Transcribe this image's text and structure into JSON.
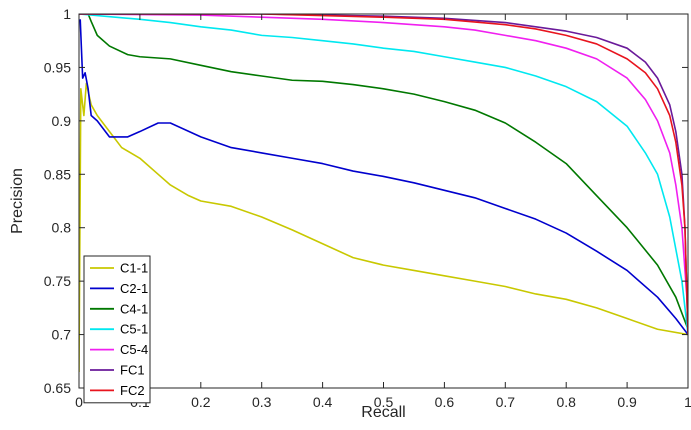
{
  "chart_data": {
    "type": "line",
    "title": "",
    "xlabel": "Recall",
    "ylabel": "Precision",
    "xlim": [
      0,
      1
    ],
    "ylim": [
      0.65,
      1
    ],
    "x_ticks": [
      0,
      0.1,
      0.2,
      0.3,
      0.4,
      0.5,
      0.6,
      0.7,
      0.8,
      0.9,
      1
    ],
    "x_tick_labels": [
      "0",
      "0.1",
      "0.2",
      "0.3",
      "0.4",
      "0.5",
      "0.6",
      "0.7",
      "0.8",
      "0.9",
      "1"
    ],
    "y_ticks": [
      0.65,
      0.7,
      0.75,
      0.8,
      0.85,
      0.9,
      0.95,
      1
    ],
    "y_tick_labels": [
      "0.65",
      "0.7",
      "0.75",
      "0.8",
      "0.85",
      "0.9",
      "0.95",
      "1"
    ],
    "grid": false,
    "legend_position": "bottom-left",
    "series": [
      {
        "name": "C1-1",
        "color": "#c8c800",
        "points": [
          [
            0,
            0.665
          ],
          [
            0.003,
            0.93
          ],
          [
            0.008,
            0.905
          ],
          [
            0.012,
            0.935
          ],
          [
            0.02,
            0.915
          ],
          [
            0.03,
            0.905
          ],
          [
            0.05,
            0.89
          ],
          [
            0.07,
            0.875
          ],
          [
            0.1,
            0.865
          ],
          [
            0.13,
            0.85
          ],
          [
            0.15,
            0.84
          ],
          [
            0.18,
            0.83
          ],
          [
            0.2,
            0.825
          ],
          [
            0.25,
            0.82
          ],
          [
            0.3,
            0.81
          ],
          [
            0.35,
            0.798
          ],
          [
            0.4,
            0.785
          ],
          [
            0.45,
            0.772
          ],
          [
            0.5,
            0.765
          ],
          [
            0.55,
            0.76
          ],
          [
            0.6,
            0.755
          ],
          [
            0.65,
            0.75
          ],
          [
            0.7,
            0.745
          ],
          [
            0.75,
            0.738
          ],
          [
            0.8,
            0.733
          ],
          [
            0.85,
            0.725
          ],
          [
            0.9,
            0.715
          ],
          [
            0.95,
            0.705
          ],
          [
            1.0,
            0.7
          ]
        ]
      },
      {
        "name": "C2-1",
        "color": "#0000cd",
        "points": [
          [
            0.002,
            0.995
          ],
          [
            0.006,
            0.94
          ],
          [
            0.01,
            0.945
          ],
          [
            0.015,
            0.93
          ],
          [
            0.02,
            0.905
          ],
          [
            0.03,
            0.9
          ],
          [
            0.05,
            0.885
          ],
          [
            0.08,
            0.885
          ],
          [
            0.1,
            0.89
          ],
          [
            0.13,
            0.898
          ],
          [
            0.15,
            0.898
          ],
          [
            0.2,
            0.885
          ],
          [
            0.25,
            0.875
          ],
          [
            0.3,
            0.87
          ],
          [
            0.35,
            0.865
          ],
          [
            0.4,
            0.86
          ],
          [
            0.45,
            0.853
          ],
          [
            0.5,
            0.848
          ],
          [
            0.55,
            0.842
          ],
          [
            0.6,
            0.835
          ],
          [
            0.65,
            0.828
          ],
          [
            0.7,
            0.818
          ],
          [
            0.75,
            0.808
          ],
          [
            0.8,
            0.795
          ],
          [
            0.85,
            0.778
          ],
          [
            0.9,
            0.76
          ],
          [
            0.95,
            0.735
          ],
          [
            0.98,
            0.715
          ],
          [
            1.0,
            0.7
          ]
        ]
      },
      {
        "name": "C4-1",
        "color": "#007800",
        "points": [
          [
            0.015,
            1.0
          ],
          [
            0.02,
            0.993
          ],
          [
            0.03,
            0.98
          ],
          [
            0.05,
            0.97
          ],
          [
            0.08,
            0.962
          ],
          [
            0.1,
            0.96
          ],
          [
            0.15,
            0.958
          ],
          [
            0.2,
            0.952
          ],
          [
            0.25,
            0.946
          ],
          [
            0.3,
            0.942
          ],
          [
            0.35,
            0.938
          ],
          [
            0.4,
            0.937
          ],
          [
            0.45,
            0.934
          ],
          [
            0.5,
            0.93
          ],
          [
            0.55,
            0.925
          ],
          [
            0.6,
            0.918
          ],
          [
            0.65,
            0.91
          ],
          [
            0.7,
            0.898
          ],
          [
            0.75,
            0.88
          ],
          [
            0.8,
            0.86
          ],
          [
            0.85,
            0.83
          ],
          [
            0.9,
            0.8
          ],
          [
            0.95,
            0.765
          ],
          [
            0.98,
            0.735
          ],
          [
            1.0,
            0.705
          ]
        ]
      },
      {
        "name": "C5-1",
        "color": "#00e8f0",
        "points": [
          [
            0.0,
            1.0
          ],
          [
            0.1,
            0.995
          ],
          [
            0.15,
            0.992
          ],
          [
            0.2,
            0.988
          ],
          [
            0.25,
            0.985
          ],
          [
            0.3,
            0.98
          ],
          [
            0.35,
            0.978
          ],
          [
            0.4,
            0.975
          ],
          [
            0.45,
            0.972
          ],
          [
            0.5,
            0.968
          ],
          [
            0.55,
            0.965
          ],
          [
            0.6,
            0.96
          ],
          [
            0.65,
            0.955
          ],
          [
            0.7,
            0.95
          ],
          [
            0.75,
            0.942
          ],
          [
            0.8,
            0.932
          ],
          [
            0.85,
            0.918
          ],
          [
            0.9,
            0.895
          ],
          [
            0.93,
            0.87
          ],
          [
            0.95,
            0.85
          ],
          [
            0.97,
            0.81
          ],
          [
            0.98,
            0.78
          ],
          [
            0.99,
            0.75
          ],
          [
            1.0,
            0.7
          ]
        ]
      },
      {
        "name": "C5-4",
        "color": "#f020f0",
        "points": [
          [
            0.0,
            1.0
          ],
          [
            0.2,
            0.999
          ],
          [
            0.3,
            0.997
          ],
          [
            0.4,
            0.995
          ],
          [
            0.5,
            0.992
          ],
          [
            0.6,
            0.988
          ],
          [
            0.65,
            0.985
          ],
          [
            0.7,
            0.98
          ],
          [
            0.75,
            0.975
          ],
          [
            0.8,
            0.968
          ],
          [
            0.85,
            0.958
          ],
          [
            0.9,
            0.94
          ],
          [
            0.93,
            0.92
          ],
          [
            0.95,
            0.9
          ],
          [
            0.97,
            0.87
          ],
          [
            0.98,
            0.84
          ],
          [
            0.99,
            0.8
          ],
          [
            1.0,
            0.72
          ]
        ]
      },
      {
        "name": "FC1",
        "color": "#6a1a9a",
        "points": [
          [
            0.0,
            1.0
          ],
          [
            0.3,
            1.0
          ],
          [
            0.5,
            0.998
          ],
          [
            0.6,
            0.996
          ],
          [
            0.7,
            0.992
          ],
          [
            0.75,
            0.988
          ],
          [
            0.8,
            0.984
          ],
          [
            0.85,
            0.978
          ],
          [
            0.9,
            0.968
          ],
          [
            0.93,
            0.955
          ],
          [
            0.95,
            0.94
          ],
          [
            0.97,
            0.915
          ],
          [
            0.98,
            0.89
          ],
          [
            0.99,
            0.85
          ],
          [
            0.995,
            0.8
          ],
          [
            1.0,
            0.7
          ]
        ]
      },
      {
        "name": "FC2",
        "color": "#e8141e",
        "points": [
          [
            0.0,
            1.0
          ],
          [
            0.3,
            1.0
          ],
          [
            0.5,
            0.997
          ],
          [
            0.6,
            0.995
          ],
          [
            0.7,
            0.99
          ],
          [
            0.75,
            0.986
          ],
          [
            0.8,
            0.98
          ],
          [
            0.85,
            0.972
          ],
          [
            0.9,
            0.958
          ],
          [
            0.93,
            0.945
          ],
          [
            0.95,
            0.93
          ],
          [
            0.97,
            0.905
          ],
          [
            0.98,
            0.88
          ],
          [
            0.99,
            0.84
          ],
          [
            0.995,
            0.8
          ],
          [
            1.0,
            0.7
          ]
        ]
      }
    ]
  }
}
